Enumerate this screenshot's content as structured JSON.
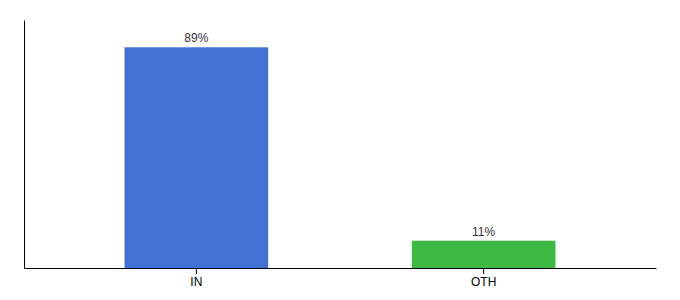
{
  "chart_data": {
    "type": "bar",
    "categories": [
      "IN",
      "OTH"
    ],
    "values": [
      89,
      11
    ],
    "value_labels": [
      "89%",
      "11%"
    ],
    "colors": [
      "#4472d4",
      "#3cb843"
    ],
    "ylim": [
      0,
      100
    ],
    "data_labels": true,
    "tick_labels": "x"
  }
}
